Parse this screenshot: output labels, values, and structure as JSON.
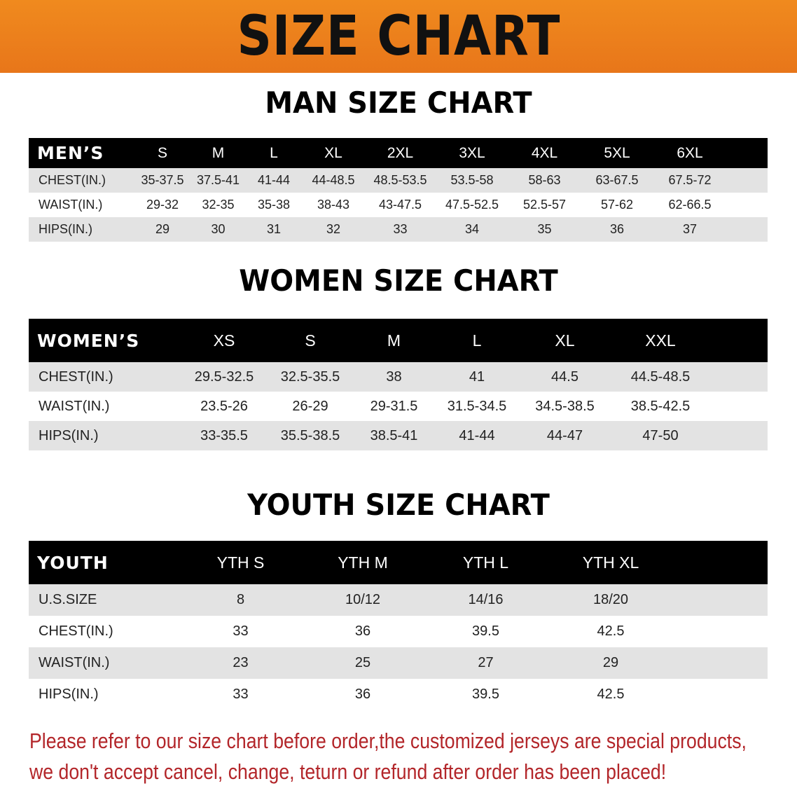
{
  "banner_title": "SIZE CHART",
  "men": {
    "title": "MAN SIZE CHART",
    "header": [
      "MEN’S",
      "S",
      "M",
      "L",
      "XL",
      "2XL",
      "3XL",
      "4XL",
      "5XL",
      "6XL"
    ],
    "rows": [
      [
        "CHEST(IN.)",
        "35-37.5",
        "37.5-41",
        "41-44",
        "44-48.5",
        "48.5-53.5",
        "53.5-58",
        "58-63",
        "63-67.5",
        "67.5-72"
      ],
      [
        "WAIST(IN.)",
        "29-32",
        "32-35",
        "35-38",
        "38-43",
        "43-47.5",
        "47.5-52.5",
        "52.5-57",
        "57-62",
        "62-66.5"
      ],
      [
        "HIPS(IN.)",
        "29",
        "30",
        "31",
        "32",
        "33",
        "34",
        "35",
        "36",
        "37"
      ]
    ]
  },
  "women": {
    "title": "WOMEN SIZE CHART",
    "header": [
      "WOMEN’S",
      "XS",
      "S",
      "M",
      "L",
      "XL",
      "XXL"
    ],
    "rows": [
      [
        "CHEST(IN.)",
        "29.5-32.5",
        "32.5-35.5",
        "38",
        "41",
        "44.5",
        "44.5-48.5"
      ],
      [
        "WAIST(IN.)",
        "23.5-26",
        "26-29",
        "29-31.5",
        "31.5-34.5",
        "34.5-38.5",
        "38.5-42.5"
      ],
      [
        "HIPS(IN.)",
        "33-35.5",
        "35.5-38.5",
        "38.5-41",
        "41-44",
        "44-47",
        "47-50"
      ]
    ]
  },
  "youth": {
    "title": "YOUTH SIZE CHART",
    "header": [
      "YOUTH",
      "YTH S",
      "YTH M",
      "YTH L",
      "YTH XL"
    ],
    "rows": [
      [
        "U.S.SIZE",
        "8",
        "10/12",
        "14/16",
        "18/20"
      ],
      [
        "CHEST(IN.)",
        "33",
        "36",
        "39.5",
        "42.5"
      ],
      [
        "WAIST(IN.)",
        "23",
        "25",
        "27",
        "29"
      ],
      [
        "HIPS(IN.)",
        "33",
        "36",
        "39.5",
        "42.5"
      ]
    ]
  },
  "notice": [
    "Please refer to our size chart before order,the customized jerseys are special products,",
    "we don't accept cancel, change, teturn or refund after order has been placed!"
  ],
  "colors": {
    "banner": "#ec7f1c",
    "notice": "#b3262a",
    "header_bg": "#000000",
    "row_gray": "#e3e3e3"
  }
}
